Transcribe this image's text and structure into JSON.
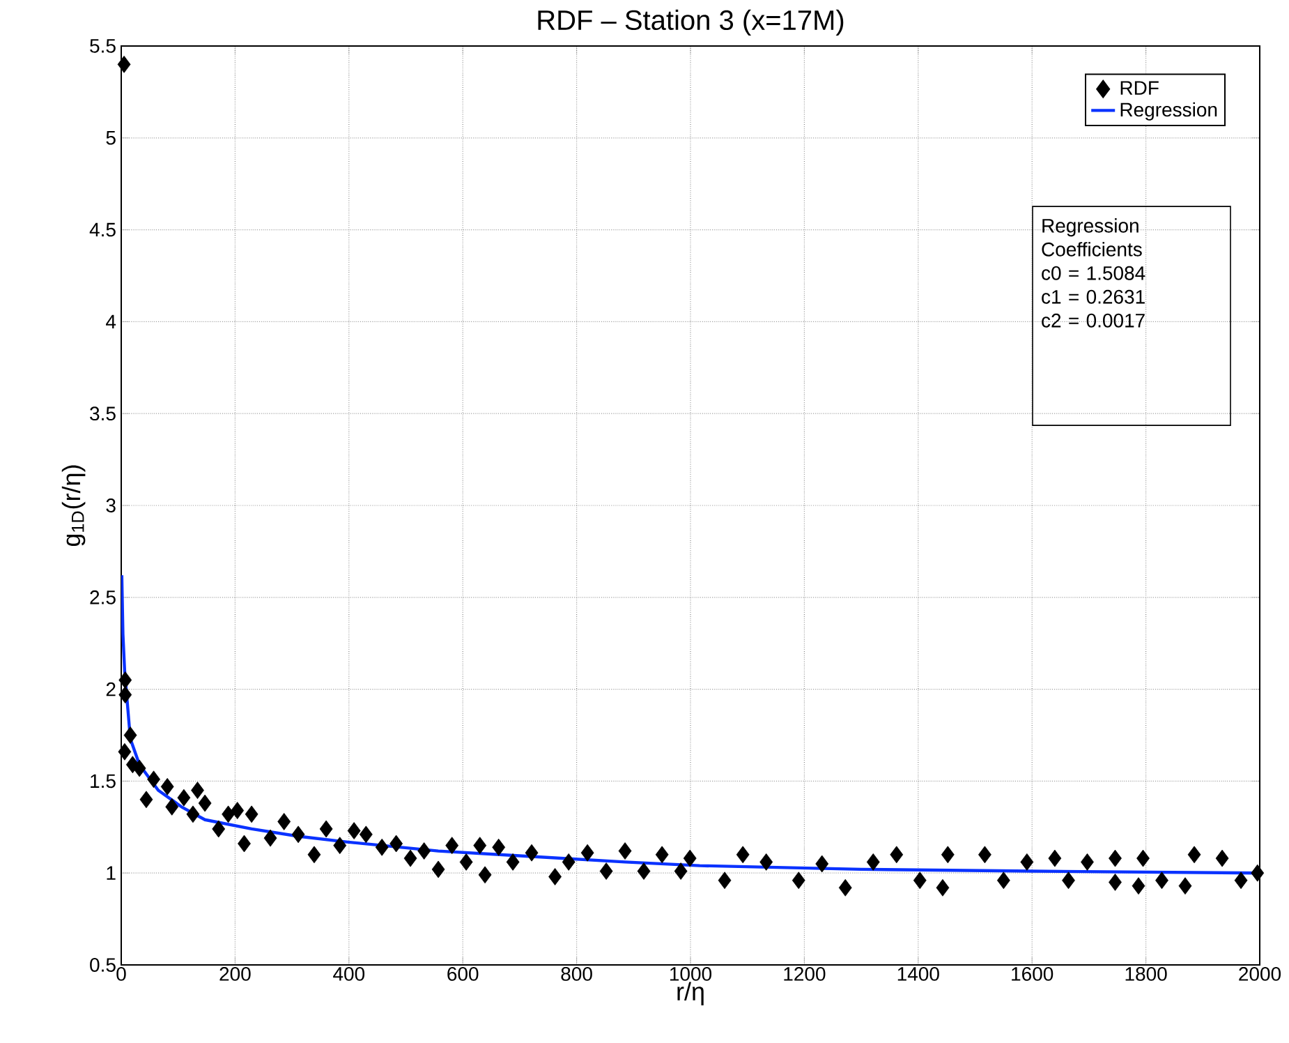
{
  "chart_data": {
    "type": "scatter",
    "title": "RDF – Station 3 (x=17M)",
    "xlabel": "r/η",
    "ylabel": "g$_{1D}$(r/η)",
    "xlim": [
      0,
      2000
    ],
    "ylim": [
      0.5,
      5.5
    ],
    "xticks": [
      0,
      200,
      400,
      600,
      800,
      1000,
      1200,
      1400,
      1600,
      1800,
      2000
    ],
    "yticks": [
      0.5,
      1,
      1.5,
      2,
      2.5,
      3,
      3.5,
      4,
      4.5,
      5,
      5.5
    ],
    "grid": true,
    "legend": "top right",
    "annotations": [
      "Regression",
      "Coefficients",
      "c0 = 1.5084",
      "c1 = 0.2631",
      "c2 = 0.0017"
    ],
    "series": [
      {
        "name": "RDF",
        "marker": "diamond",
        "color": "#000000",
        "x": [
          5,
          7,
          7,
          16,
          6,
          20,
          32,
          44,
          57,
          81,
          89,
          110,
          126,
          134,
          147,
          171,
          188,
          204,
          216,
          229,
          262,
          286,
          311,
          339,
          360,
          384,
          409,
          430,
          458,
          483,
          508,
          532,
          557,
          581,
          606,
          630,
          639,
          663,
          688,
          721,
          762,
          786,
          819,
          852,
          885,
          918,
          950,
          983,
          999,
          1060,
          1092,
          1133,
          1190,
          1231,
          1272,
          1321,
          1362,
          1403,
          1443,
          1452,
          1517,
          1550,
          1591,
          1640,
          1664,
          1697,
          1746,
          1746,
          1787,
          1795,
          1828,
          1869,
          1885,
          1934,
          1967,
          1996
        ],
        "values": [
          5.4,
          2.05,
          1.97,
          1.75,
          1.66,
          1.59,
          1.57,
          1.4,
          1.51,
          1.47,
          1.36,
          1.41,
          1.32,
          1.45,
          1.38,
          1.24,
          1.32,
          1.34,
          1.16,
          1.32,
          1.19,
          1.28,
          1.21,
          1.1,
          1.24,
          1.15,
          1.23,
          1.21,
          1.14,
          1.16,
          1.08,
          1.12,
          1.02,
          1.15,
          1.06,
          1.15,
          0.99,
          1.14,
          1.06,
          1.11,
          0.98,
          1.06,
          1.11,
          1.01,
          1.12,
          1.01,
          1.1,
          1.01,
          1.08,
          0.96,
          1.1,
          1.06,
          0.96,
          1.05,
          0.92,
          1.06,
          1.1,
          0.96,
          0.92,
          1.1,
          1.1,
          0.96,
          1.06,
          1.08,
          0.96,
          1.06,
          1.08,
          0.95,
          0.93,
          1.08,
          0.96,
          0.93,
          1.1,
          1.08,
          0.96,
          1.0
        ]
      },
      {
        "name": "Regression",
        "type": "line",
        "marker": "none",
        "color": "#0a32ff",
        "x": [
          1,
          3,
          6,
          16,
          32,
          65,
          106,
          147,
          229,
          311,
          393,
          557,
          721,
          885,
          1016,
          1300,
          1600,
          2000
        ],
        "values": [
          2.62,
          2.3,
          2.1,
          1.73,
          1.59,
          1.45,
          1.36,
          1.29,
          1.24,
          1.2,
          1.17,
          1.12,
          1.09,
          1.06,
          1.04,
          1.02,
          1.01,
          1.0
        ]
      }
    ]
  }
}
